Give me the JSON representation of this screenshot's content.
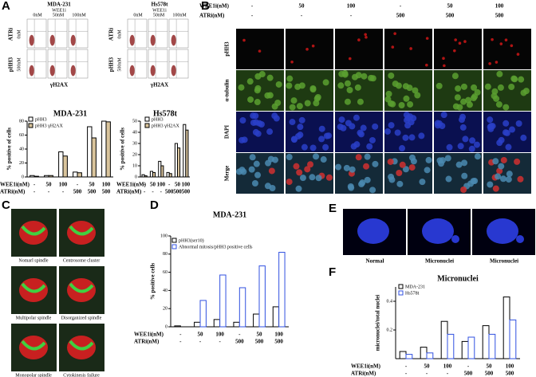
{
  "panel_labels": [
    "A",
    "B",
    "C",
    "D",
    "E",
    "F"
  ],
  "flow": [
    {
      "title": "MDA-231",
      "subtitle": "WEE1i",
      "columns": [
        "0nM",
        "50nM",
        "100nM"
      ],
      "row_axis": "ATRi",
      "rows": [
        "0nM",
        "500nM"
      ],
      "y_label": "pHH3",
      "x_label": "γH2AX"
    },
    {
      "title": "Hs578t",
      "subtitle": "WEE1i",
      "columns": [
        "0nM",
        "50nM",
        "100nM"
      ],
      "row_axis": "ATRi",
      "rows": [
        "0nM",
        "500nM"
      ],
      "y_label": "pHH3",
      "x_label": "γH2AX"
    }
  ],
  "imaging": {
    "row_heads": [
      "WEE1i(nM)",
      "ATRi(nM)"
    ],
    "columns": [
      [
        "-",
        "-"
      ],
      [
        "50",
        "-"
      ],
      [
        "100",
        "-"
      ],
      [
        "-",
        "500"
      ],
      [
        "50",
        "500"
      ],
      [
        "100",
        "500"
      ]
    ],
    "rows": [
      "pHH3",
      "α-tubulin",
      "DAPI",
      "Merge"
    ]
  },
  "spindles": [
    "Nomarl spindle",
    "Centrosome cluster",
    "Multipolar spindle",
    "Disorganized spindle",
    "Monopolar spindle",
    "Cytokinesis failure"
  ],
  "nuclei": [
    "Normal",
    "Micronuclei",
    "Micronuclei"
  ],
  "chart_data": [
    {
      "type": "bar",
      "title": "MDA-231",
      "y_label": "% positive of cells",
      "category_rows": [
        "WEE1i(nM)",
        "ATRi(nM)"
      ],
      "categories": [
        [
          "-",
          "-"
        ],
        [
          "50",
          "-"
        ],
        [
          "100",
          "-"
        ],
        [
          "-",
          "500"
        ],
        [
          "50",
          "500"
        ],
        [
          "100",
          "500"
        ]
      ],
      "series": [
        {
          "name": "pHH3",
          "color": "#ffffff",
          "edge": "#000000",
          "values": [
            2,
            2,
            36,
            7,
            72,
            80
          ]
        },
        {
          "name": "pHH3 γH2AX",
          "color": "#d9c49c",
          "edge": "#000000",
          "values": [
            1,
            2,
            30,
            6,
            56,
            79
          ]
        }
      ],
      "ylim": [
        0,
        80
      ],
      "yticks": [
        0,
        20,
        40,
        60,
        80
      ]
    },
    {
      "type": "bar",
      "title": "Hs578t",
      "y_label": "% positive of cells",
      "category_rows": [
        "WEE1i(nM)",
        "ATRi(nM)"
      ],
      "categories": [
        [
          "-",
          "-"
        ],
        [
          "50",
          "-"
        ],
        [
          "100",
          "-"
        ],
        [
          "-",
          "500"
        ],
        [
          "50",
          "500"
        ],
        [
          "100",
          "500"
        ]
      ],
      "series": [
        {
          "name": "pHH3",
          "color": "#ffffff",
          "edge": "#000000",
          "values": [
            2,
            5,
            14,
            4,
            30,
            47
          ]
        },
        {
          "name": "pHH3 γH2AX",
          "color": "#d9c49c",
          "edge": "#000000",
          "values": [
            1,
            4,
            10,
            3,
            26,
            42
          ]
        }
      ],
      "ylim": [
        0,
        50
      ],
      "yticks": [
        0,
        10,
        20,
        30,
        40,
        50
      ]
    },
    {
      "type": "bar",
      "title": "MDA-231",
      "y_label": "% positive cells",
      "category_rows": [
        "WEE1i(nM)",
        "ATRi(nM)"
      ],
      "categories": [
        [
          "-",
          "-"
        ],
        [
          "50",
          "-"
        ],
        [
          "100",
          "-"
        ],
        [
          "-",
          "500"
        ],
        [
          "50",
          "500"
        ],
        [
          "100",
          "500"
        ]
      ],
      "series": [
        {
          "name": "pHH3(ser10)",
          "color": "#ffffff",
          "edge": "#000000",
          "values": [
            1,
            5,
            8,
            5,
            14,
            22
          ]
        },
        {
          "name": "Abnormal mitosis/pHH3 positive cells",
          "color": "#ffffff",
          "edge": "#3050e0",
          "values": [
            0,
            29,
            57,
            43,
            67,
            82
          ]
        }
      ],
      "ylim": [
        0,
        100
      ],
      "yticks": [
        0,
        20,
        40,
        60,
        80,
        100
      ]
    },
    {
      "type": "bar",
      "title": "Micronuclei",
      "y_label": "micronuclei/total nuclei",
      "category_rows": [
        "WEE1i(nM)",
        "ATRi(nM)"
      ],
      "categories": [
        [
          "-",
          "-"
        ],
        [
          "50",
          "-"
        ],
        [
          "100",
          "-"
        ],
        [
          "-",
          "500"
        ],
        [
          "50",
          "500"
        ],
        [
          "100",
          "500"
        ]
      ],
      "series": [
        {
          "name": "MDA-231",
          "color": "#ffffff",
          "edge": "#000000",
          "values": [
            0.05,
            0.08,
            0.26,
            0.12,
            0.23,
            0.43
          ]
        },
        {
          "name": "Hs578t",
          "color": "#ffffff",
          "edge": "#3050e0",
          "values": [
            0.03,
            0.04,
            0.17,
            0.15,
            0.17,
            0.27
          ]
        }
      ],
      "ylim": [
        0,
        0.5
      ],
      "yticks": [
        0.2,
        0.4
      ]
    }
  ]
}
